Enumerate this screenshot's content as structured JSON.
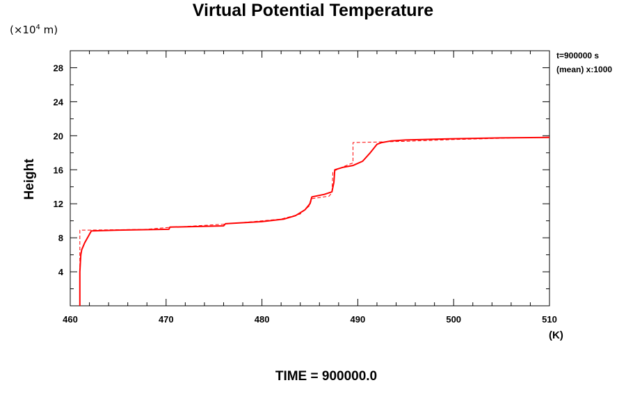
{
  "chart_data": {
    "type": "line",
    "title": "Virtual Potential Temperature",
    "ylabel": "Height",
    "y_unit_prefix": "(×10",
    "y_unit_exponent": "4",
    "y_unit_suffix": " m)",
    "x_unit": "(K)",
    "xlim": [
      460,
      510
    ],
    "ylim": [
      0,
      30
    ],
    "x_ticks": [
      460,
      470,
      480,
      490,
      500,
      510
    ],
    "y_ticks": [
      4,
      8,
      12,
      16,
      20,
      24,
      28
    ],
    "grid": false,
    "series": [
      {
        "style": "solid",
        "color": "#ff0000",
        "points": [
          [
            461.0,
            0.0
          ],
          [
            461.0,
            4.0
          ],
          [
            461.1,
            6.0
          ],
          [
            461.2,
            6.6
          ],
          [
            461.5,
            7.4
          ],
          [
            461.8,
            8.0
          ],
          [
            462.2,
            8.8
          ],
          [
            465.0,
            8.9
          ],
          [
            470.3,
            9.0
          ],
          [
            470.4,
            9.25
          ],
          [
            476.0,
            9.4
          ],
          [
            476.2,
            9.65
          ],
          [
            480.0,
            9.9
          ],
          [
            482.3,
            10.2
          ],
          [
            483.5,
            10.6
          ],
          [
            484.5,
            11.3
          ],
          [
            485.0,
            12.0
          ],
          [
            485.2,
            12.8
          ],
          [
            486.5,
            13.1
          ],
          [
            487.3,
            13.4
          ],
          [
            487.5,
            14.5
          ],
          [
            487.6,
            16.0
          ],
          [
            488.5,
            16.3
          ],
          [
            489.5,
            16.5
          ],
          [
            490.5,
            17.0
          ],
          [
            491.3,
            18.0
          ],
          [
            492.0,
            19.0
          ],
          [
            492.5,
            19.2
          ],
          [
            493.5,
            19.4
          ],
          [
            495.0,
            19.5
          ],
          [
            500.0,
            19.65
          ],
          [
            505.0,
            19.75
          ],
          [
            510.0,
            19.8
          ]
        ]
      },
      {
        "style": "dashed",
        "color": "#ff0000",
        "points": [
          [
            461.0,
            0.0
          ],
          [
            461.0,
            7.0
          ],
          [
            461.0,
            8.9
          ],
          [
            462.0,
            8.9
          ],
          [
            468.0,
            9.0
          ],
          [
            470.0,
            9.2
          ],
          [
            476.0,
            9.6
          ],
          [
            480.0,
            10.0
          ],
          [
            482.0,
            10.2
          ],
          [
            484.0,
            10.8
          ],
          [
            485.0,
            11.8
          ],
          [
            485.2,
            12.6
          ],
          [
            487.0,
            12.9
          ],
          [
            487.3,
            13.3
          ],
          [
            487.4,
            15.8
          ],
          [
            489.0,
            16.6
          ],
          [
            489.5,
            16.8
          ],
          [
            489.5,
            19.2
          ],
          [
            491.5,
            19.25
          ],
          [
            495.0,
            19.35
          ],
          [
            500.0,
            19.55
          ],
          [
            505.0,
            19.7
          ],
          [
            510.0,
            19.85
          ]
        ]
      }
    ]
  },
  "annotations": {
    "time_label": "t=900000 s",
    "mean_label": "(mean) x:1000",
    "footer": "TIME = 900000.0"
  }
}
